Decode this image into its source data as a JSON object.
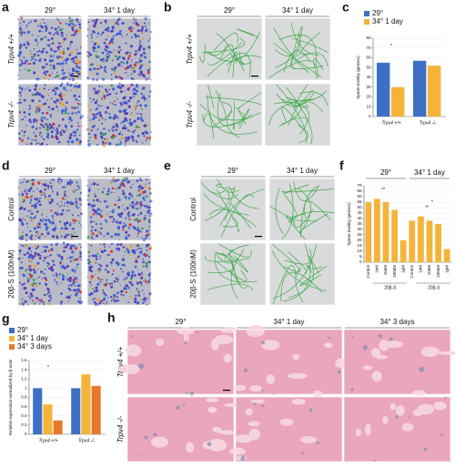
{
  "panels": {
    "a": {
      "label": "a",
      "columns": [
        "29°",
        "34° 1 day"
      ],
      "rows": [
        "Trpv4 +/+",
        "Trpv4 -/-"
      ]
    },
    "b": {
      "label": "b",
      "columns": [
        "29°",
        "34° 1 day"
      ],
      "rows": [
        "Trpv4 +/+",
        "Trpv4 -/-"
      ]
    },
    "d": {
      "label": "d",
      "columns": [
        "29°",
        "34° 1 day"
      ],
      "rows": [
        "Control",
        "20β-S (100nM)"
      ]
    },
    "e": {
      "label": "e",
      "columns": [
        "29°",
        "34° 1 day"
      ],
      "rows": [
        "Control",
        "20β-S (100nM)"
      ]
    },
    "h": {
      "label": "h",
      "columns": [
        "29°",
        "34° 1 day",
        "34° 3 days"
      ],
      "rows": [
        "Trpv4 +/+",
        "Trpv4 -/-"
      ]
    }
  },
  "chart_data": [
    {
      "type": "bar",
      "panel_label": "c",
      "y_label": "Sperm motility (µm/sec)",
      "categories": [
        "Trpv4 +/+",
        "Trpv4 -/-"
      ],
      "series": [
        {
          "name": "29°",
          "color": "#3d6fc6",
          "values": [
            55,
            57
          ]
        },
        {
          "name": "34° 1 day",
          "color": "#f5b33a",
          "values": [
            30,
            52
          ]
        }
      ],
      "ylim": [
        0,
        80
      ],
      "yticks": [
        0,
        10,
        20,
        30,
        40,
        50,
        60,
        70,
        80
      ],
      "annotations": [
        "*"
      ]
    },
    {
      "type": "bar",
      "panel_label": "f",
      "y_label": "Sperm motility (µm/sec)",
      "group_label": "20β-S",
      "categories": [
        "Control",
        "1nM",
        "10nM",
        "100nM",
        "1µM"
      ],
      "color": "#f5b33a",
      "groups": [
        {
          "name": "29°",
          "values": [
            55,
            58,
            55,
            48,
            20
          ]
        },
        {
          "name": "34° 1 day",
          "values": [
            38,
            42,
            38,
            35,
            12
          ]
        }
      ],
      "ylim": [
        0,
        70
      ],
      "yticks": [
        0,
        5,
        10,
        15,
        20,
        25,
        30,
        35,
        40,
        45,
        50,
        55,
        60,
        65,
        70
      ],
      "annotations": [
        "**",
        "**",
        "*"
      ]
    },
    {
      "type": "bar",
      "panel_label": "g",
      "y_label": "Relative expression normalized by β-actin",
      "categories": [
        "Trpv4 +/+",
        "Trpv4 -/-"
      ],
      "series": [
        {
          "name": "29°",
          "color": "#3d6fc6",
          "values": [
            1.0,
            1.0
          ]
        },
        {
          "name": "34° 1 day",
          "color": "#f5b33a",
          "values": [
            0.65,
            1.3
          ]
        },
        {
          "name": "34° 3 days",
          "color": "#e8782a",
          "values": [
            0.3,
            1.05
          ]
        }
      ],
      "ylim": [
        0,
        1.6
      ],
      "yticks": [
        0,
        0.2,
        0.4,
        0.6,
        0.8,
        1,
        1.2,
        1.4,
        1.6
      ],
      "annotations": [
        "*"
      ]
    }
  ]
}
